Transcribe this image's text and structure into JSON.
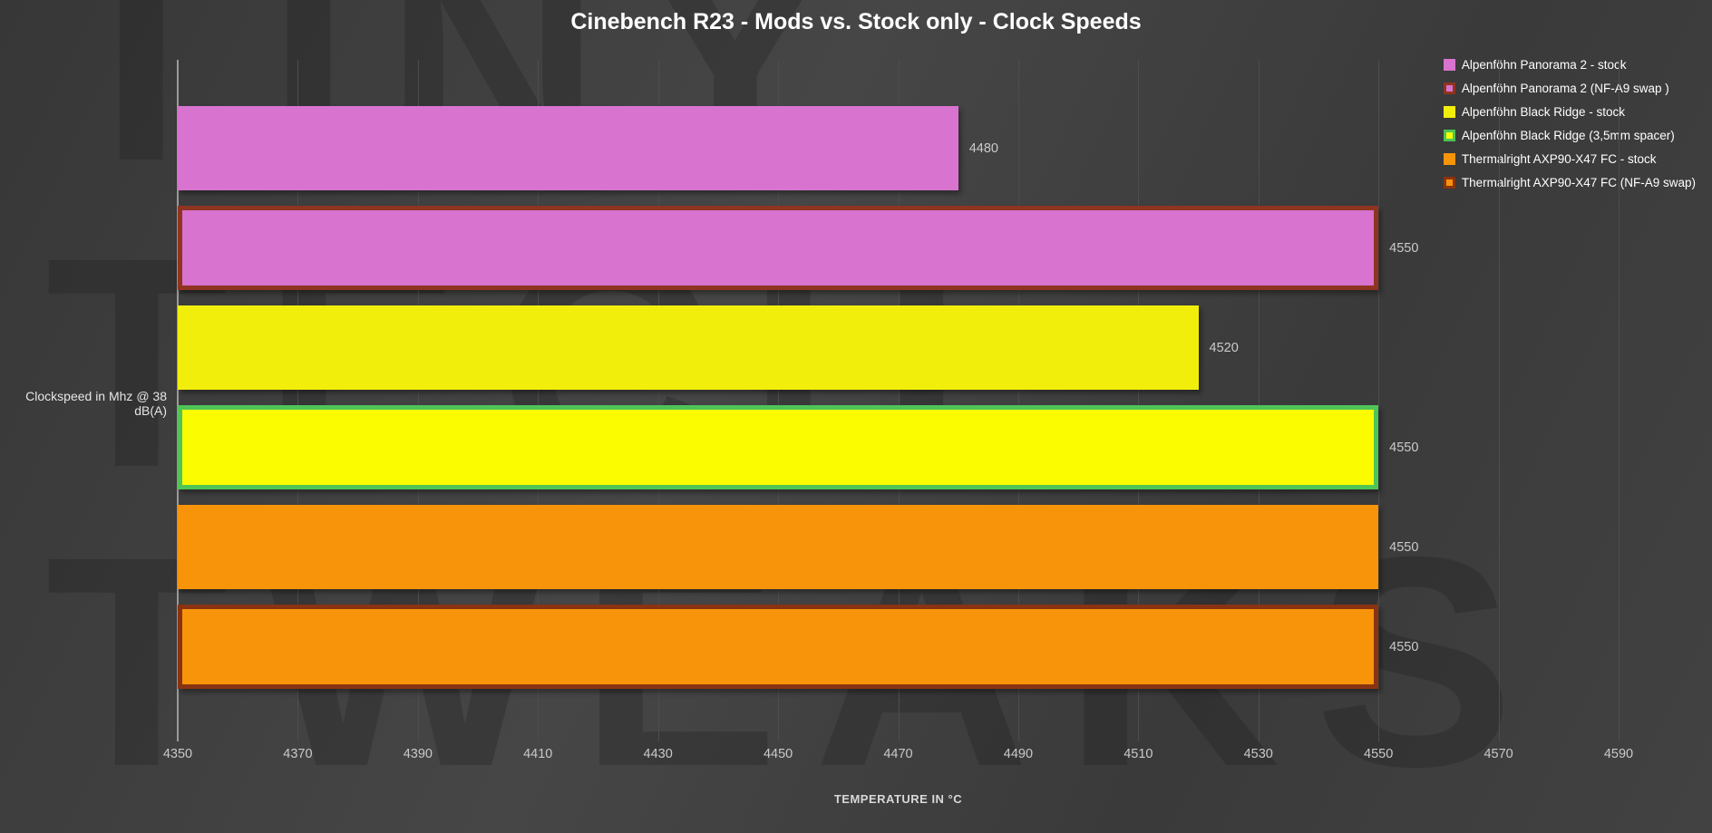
{
  "watermark": {
    "lines": [
      "TINY",
      "TECH",
      "TWEAKS"
    ]
  },
  "colors": {
    "background": "#3e3e3e",
    "gridline": "#4d4d4d",
    "axis_line": "#9a9a9a",
    "title_text": "#ffffff",
    "label_text": "#cbcbcb"
  },
  "chart_data": {
    "type": "bar",
    "orientation": "horizontal",
    "title": "Cinebench R23 - Mods vs. Stock only - Clock Speeds",
    "ylabel": "Clockspeed in Mhz @ 38 dB(A)",
    "xlabel": "TEMPERATURE IN °C",
    "xlim": [
      4350,
      4590
    ],
    "xticks": [
      4350,
      4370,
      4390,
      4410,
      4430,
      4450,
      4470,
      4490,
      4510,
      4530,
      4550,
      4570,
      4590
    ],
    "grid": true,
    "legend_position": "top-right",
    "series": [
      {
        "name": "Alpenföhn Panorama 2 - stock",
        "value": 4480,
        "fill": "#d873d0",
        "border": null
      },
      {
        "name": "Alpenföhn Panorama 2 (NF-A9 swap )",
        "value": 4550,
        "fill": "#d873d0",
        "border": "#8f3420"
      },
      {
        "name": "Alpenföhn Black Ridge - stock",
        "value": 4520,
        "fill": "#f2ee0b",
        "border": null
      },
      {
        "name": "Alpenföhn Black Ridge (3,5mm spacer)",
        "value": 4550,
        "fill": "#fcfc00",
        "border": "#4fc457"
      },
      {
        "name": "Thermalright AXP90-X47 FC - stock",
        "value": 4550,
        "fill": "#f8940a",
        "border": null
      },
      {
        "name": "Thermalright AXP90-X47 FC (NF-A9 swap)",
        "value": 4550,
        "fill": "#f8940a",
        "border": "#8a3312"
      }
    ]
  }
}
